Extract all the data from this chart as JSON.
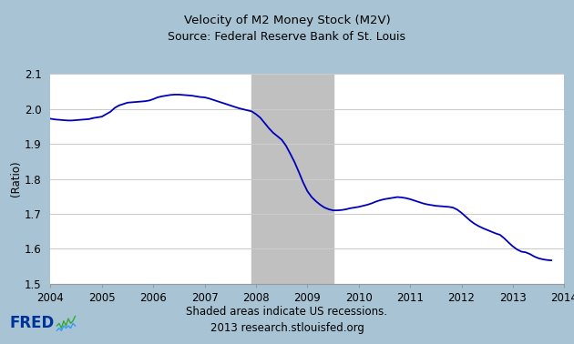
{
  "title_line1": "Velocity of M2 Money Stock (M2V)",
  "title_line2": "Source: Federal Reserve Bank of St. Louis",
  "ylabel": "(Ratio)",
  "footer_line1": "Shaded areas indicate US recessions.",
  "footer_line2": "2013 research.stlouisfed.org",
  "ylim": [
    1.5,
    2.1
  ],
  "xlim": [
    2004.0,
    2014.0
  ],
  "yticks": [
    1.5,
    1.6,
    1.7,
    1.8,
    1.9,
    2.0,
    2.1
  ],
  "xticks": [
    2004,
    2005,
    2006,
    2007,
    2008,
    2009,
    2010,
    2011,
    2012,
    2013,
    2014
  ],
  "recession_start": 2007.917,
  "recession_end": 2009.5,
  "bg_outer": "#a8c4d4",
  "bg_plot": "#ffffff",
  "recession_color": "#c0c0c0",
  "line_color": "#0000bb",
  "line_width": 1.3,
  "data": [
    [
      2004.0,
      1.972
    ],
    [
      2004.083,
      1.97
    ],
    [
      2004.167,
      1.969
    ],
    [
      2004.25,
      1.968
    ],
    [
      2004.333,
      1.967
    ],
    [
      2004.417,
      1.967
    ],
    [
      2004.5,
      1.968
    ],
    [
      2004.583,
      1.969
    ],
    [
      2004.667,
      1.97
    ],
    [
      2004.75,
      1.971
    ],
    [
      2004.833,
      1.974
    ],
    [
      2004.917,
      1.976
    ],
    [
      2005.0,
      1.978
    ],
    [
      2005.083,
      1.985
    ],
    [
      2005.167,
      1.992
    ],
    [
      2005.25,
      2.003
    ],
    [
      2005.333,
      2.01
    ],
    [
      2005.417,
      2.014
    ],
    [
      2005.5,
      2.018
    ],
    [
      2005.583,
      2.019
    ],
    [
      2005.667,
      2.02
    ],
    [
      2005.75,
      2.021
    ],
    [
      2005.833,
      2.022
    ],
    [
      2005.917,
      2.024
    ],
    [
      2006.0,
      2.028
    ],
    [
      2006.083,
      2.033
    ],
    [
      2006.167,
      2.036
    ],
    [
      2006.25,
      2.038
    ],
    [
      2006.333,
      2.04
    ],
    [
      2006.417,
      2.041
    ],
    [
      2006.5,
      2.041
    ],
    [
      2006.583,
      2.04
    ],
    [
      2006.667,
      2.039
    ],
    [
      2006.75,
      2.038
    ],
    [
      2006.833,
      2.036
    ],
    [
      2006.917,
      2.034
    ],
    [
      2007.0,
      2.033
    ],
    [
      2007.083,
      2.03
    ],
    [
      2007.167,
      2.026
    ],
    [
      2007.25,
      2.022
    ],
    [
      2007.333,
      2.018
    ],
    [
      2007.417,
      2.014
    ],
    [
      2007.5,
      2.01
    ],
    [
      2007.583,
      2.006
    ],
    [
      2007.667,
      2.002
    ],
    [
      2007.75,
      1.999
    ],
    [
      2007.833,
      1.996
    ],
    [
      2007.917,
      1.993
    ],
    [
      2008.0,
      1.985
    ],
    [
      2008.083,
      1.975
    ],
    [
      2008.167,
      1.96
    ],
    [
      2008.25,
      1.945
    ],
    [
      2008.333,
      1.932
    ],
    [
      2008.417,
      1.922
    ],
    [
      2008.5,
      1.912
    ],
    [
      2008.583,
      1.895
    ],
    [
      2008.667,
      1.872
    ],
    [
      2008.75,
      1.848
    ],
    [
      2008.833,
      1.82
    ],
    [
      2008.917,
      1.79
    ],
    [
      2009.0,
      1.765
    ],
    [
      2009.083,
      1.748
    ],
    [
      2009.167,
      1.736
    ],
    [
      2009.25,
      1.726
    ],
    [
      2009.333,
      1.718
    ],
    [
      2009.417,
      1.713
    ],
    [
      2009.5,
      1.71
    ],
    [
      2009.583,
      1.71
    ],
    [
      2009.667,
      1.711
    ],
    [
      2009.75,
      1.713
    ],
    [
      2009.833,
      1.716
    ],
    [
      2009.917,
      1.718
    ],
    [
      2010.0,
      1.72
    ],
    [
      2010.083,
      1.723
    ],
    [
      2010.167,
      1.726
    ],
    [
      2010.25,
      1.73
    ],
    [
      2010.333,
      1.735
    ],
    [
      2010.417,
      1.739
    ],
    [
      2010.5,
      1.742
    ],
    [
      2010.583,
      1.744
    ],
    [
      2010.667,
      1.746
    ],
    [
      2010.75,
      1.748
    ],
    [
      2010.833,
      1.747
    ],
    [
      2010.917,
      1.745
    ],
    [
      2011.0,
      1.742
    ],
    [
      2011.083,
      1.738
    ],
    [
      2011.167,
      1.734
    ],
    [
      2011.25,
      1.73
    ],
    [
      2011.333,
      1.727
    ],
    [
      2011.417,
      1.725
    ],
    [
      2011.5,
      1.723
    ],
    [
      2011.583,
      1.722
    ],
    [
      2011.667,
      1.721
    ],
    [
      2011.75,
      1.72
    ],
    [
      2011.833,
      1.718
    ],
    [
      2011.917,
      1.712
    ],
    [
      2012.0,
      1.703
    ],
    [
      2012.083,
      1.692
    ],
    [
      2012.167,
      1.681
    ],
    [
      2012.25,
      1.672
    ],
    [
      2012.333,
      1.665
    ],
    [
      2012.417,
      1.659
    ],
    [
      2012.5,
      1.654
    ],
    [
      2012.583,
      1.649
    ],
    [
      2012.667,
      1.644
    ],
    [
      2012.75,
      1.64
    ],
    [
      2012.833,
      1.63
    ],
    [
      2012.917,
      1.618
    ],
    [
      2013.0,
      1.607
    ],
    [
      2013.083,
      1.598
    ],
    [
      2013.167,
      1.592
    ],
    [
      2013.25,
      1.59
    ],
    [
      2013.333,
      1.585
    ],
    [
      2013.417,
      1.578
    ],
    [
      2013.5,
      1.573
    ],
    [
      2013.583,
      1.57
    ],
    [
      2013.667,
      1.568
    ],
    [
      2013.75,
      1.567
    ]
  ]
}
